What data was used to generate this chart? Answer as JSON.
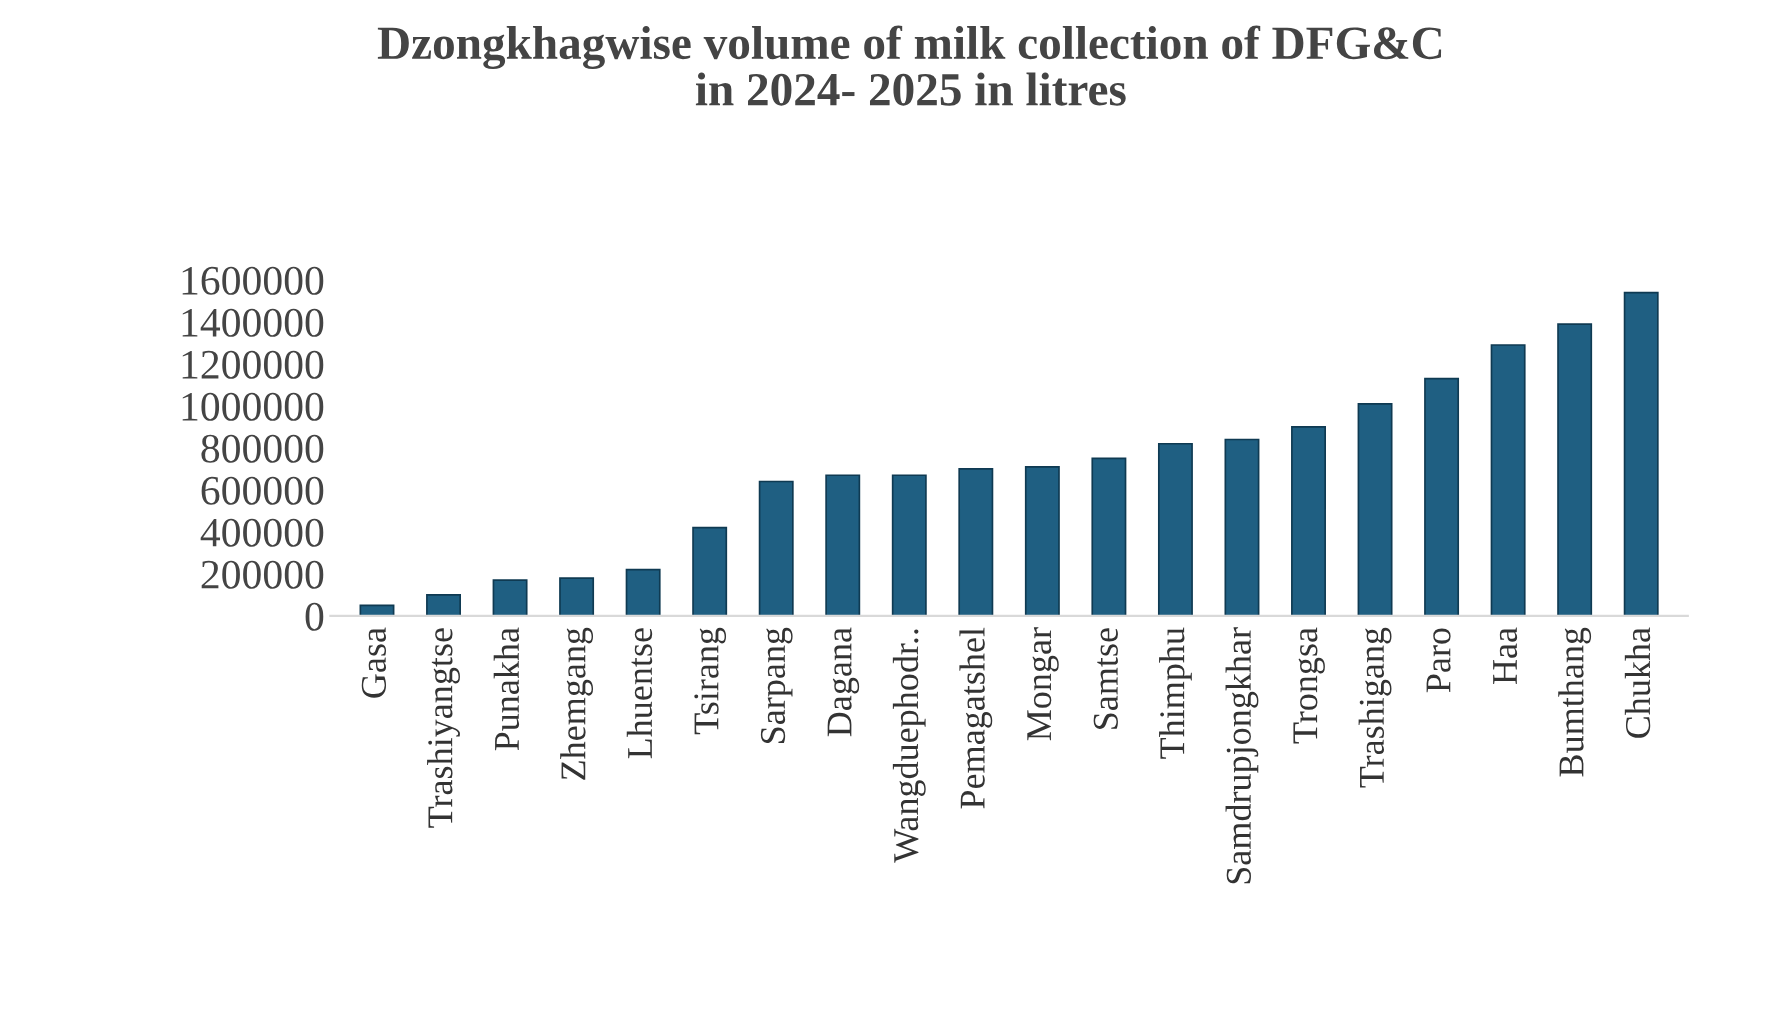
{
  "chart_data": {
    "type": "bar",
    "title": "Dzongkhagwise volume of milk collection of DFG&C\nin 2024- 2025 in litres",
    "categories": [
      "Gasa",
      "Trashiyangtse",
      "Punakha",
      "Zhemgang",
      "Lhuentse",
      "Tsirang",
      "Sarpang",
      "Dagana",
      "Wangduephodr..",
      "Pemagatshel",
      "Mongar",
      "Samtse",
      "Thimphu",
      "Samdrupjongkhar",
      "Trongsa",
      "Trashigang",
      "Paro",
      "Haa",
      "Bumthang",
      "Chukha"
    ],
    "values": [
      50000,
      100000,
      170000,
      180000,
      220000,
      420000,
      640000,
      670000,
      670000,
      700000,
      710000,
      750000,
      820000,
      840000,
      900000,
      1010000,
      1130000,
      1290000,
      1390000,
      1540000
    ],
    "color": "#1f5f82",
    "ylim": [
      0,
      1600000
    ],
    "yticks": [
      0,
      200000,
      400000,
      600000,
      800000,
      1000000,
      1200000,
      1400000,
      1600000
    ],
    "grid": false
  }
}
